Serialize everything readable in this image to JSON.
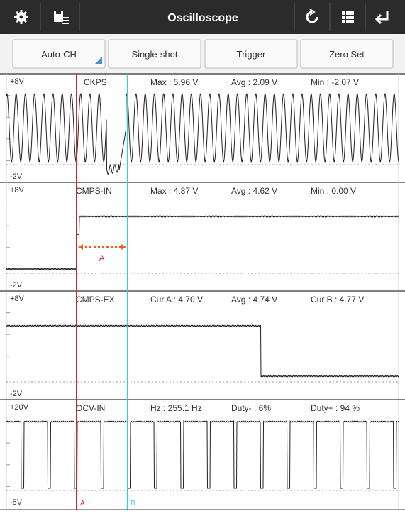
{
  "header": {
    "title": "Oscilloscope"
  },
  "buttons": [
    "Auto-CH",
    "Single-shot",
    "Trigger",
    "Zero Set"
  ],
  "channels": [
    {
      "top": "+8V",
      "name": "CKPS",
      "stats": [
        "Max : 5.96 V",
        "Avg : 2.09 V",
        "Min : -2.07 V"
      ],
      "bottom": "-2V"
    },
    {
      "top": "+8V",
      "name": "CMPS-IN",
      "stats": [
        "Max : 4.87 V",
        "Avg : 4.62 V",
        "Min : 0.00 V"
      ],
      "bottom": "-2V"
    },
    {
      "top": "+8V",
      "name": "CMPS-EX",
      "stats": [
        "Cur A : 4.70 V",
        "Avg : 4.74 V",
        "Cur B : 4.77 V"
      ],
      "bottom": "-2V"
    },
    {
      "top": "+20V",
      "name": "OCV-IN",
      "stats": [
        "Hz : 255.1 Hz",
        "Duty- : 6%",
        "Duty+ : 94 %"
      ],
      "bottom": "-5V"
    }
  ],
  "cursors": {
    "a": "A",
    "b": "B"
  },
  "measure_label": "A"
}
